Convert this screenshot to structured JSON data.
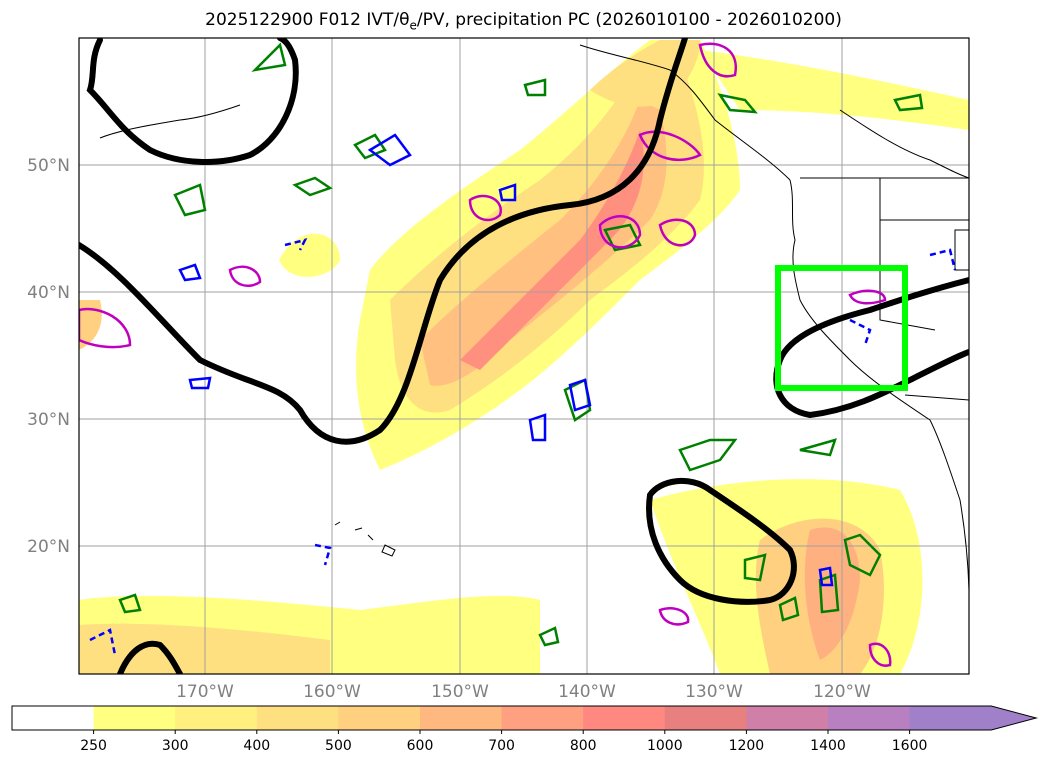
{
  "title": "2025122900 F012 IVT/θe/PV, precipitation PC (2026010100 - 2026010200)",
  "title_parts": {
    "prefix": "2025122900 F012 IVT/θ",
    "subscript": "e",
    "suffix": "/PV, precipitation PC (2026010100 - 2026010200)"
  },
  "map": {
    "lon_range": [
      -180,
      -110
    ],
    "lat_range": [
      10,
      60
    ],
    "lat_ticks": [
      {
        "value": 50,
        "label": "50°N"
      },
      {
        "value": 40,
        "label": "40°N"
      },
      {
        "value": 30,
        "label": "30°N"
      },
      {
        "value": 20,
        "label": "20°N"
      }
    ],
    "lon_ticks": [
      {
        "value": -170,
        "label": "170°W"
      },
      {
        "value": -160,
        "label": "160°W"
      },
      {
        "value": -150,
        "label": "150°W"
      },
      {
        "value": -140,
        "label": "140°W"
      },
      {
        "value": -130,
        "label": "130°W"
      },
      {
        "value": -120,
        "label": "120°W"
      }
    ],
    "grid": true,
    "highlight_box": {
      "lon": [
        -125,
        -115
      ],
      "lat": [
        32.5,
        42
      ],
      "color": "#00ff00"
    }
  },
  "colorbar": {
    "levels": [
      "250",
      "300",
      "400",
      "500",
      "600",
      "700",
      "800",
      "1000",
      "1200",
      "1400",
      "1600"
    ],
    "colors": [
      "#ffffff",
      "#ffff80",
      "#fff080",
      "#ffe080",
      "#ffd080",
      "#ffb880",
      "#ffa080",
      "#ff8880",
      "#e88080",
      "#d080a8",
      "#b880c0",
      "#a080c8"
    ],
    "extend": "max"
  },
  "colors": {
    "theta_e_contour": "#000000",
    "pv_contour_green": "#008000",
    "pv_contour_blue": "#0000ff",
    "pv_contour_magenta": "#c000c0",
    "coastline": "#000000"
  }
}
